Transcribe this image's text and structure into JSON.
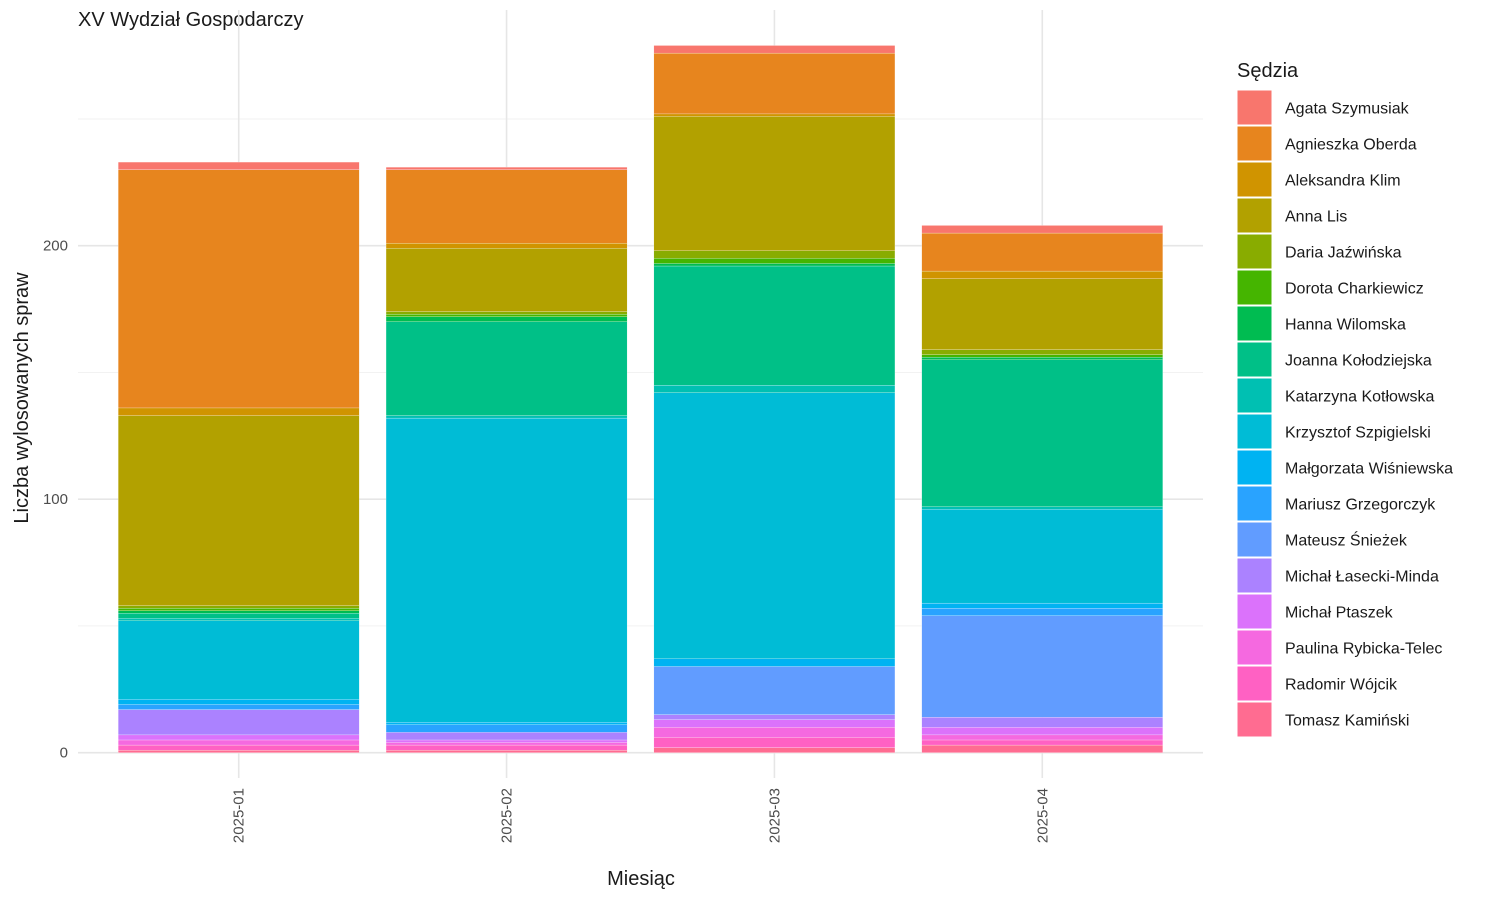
{
  "chart_data": {
    "type": "bar",
    "stacked": true,
    "title": "XV Wydział Gospodarczy",
    "xlabel": "Miesiąc",
    "ylabel": "Liczba wylosowanych spraw",
    "categories": [
      "2025-01",
      "2025-02",
      "2025-03",
      "2025-04"
    ],
    "ylim": [
      -10,
      293
    ],
    "yticks": [
      0,
      100,
      200
    ],
    "grid": true,
    "legend_title": "Sędzia",
    "legend_position": "right",
    "series": [
      {
        "name": "Agata Szymusiak",
        "color": "#F8766D",
        "values": [
          3,
          1,
          3,
          3
        ]
      },
      {
        "name": "Agnieszka Oberda",
        "color": "#E7851E",
        "values": [
          94,
          29,
          24,
          15
        ]
      },
      {
        "name": "Aleksandra Klim",
        "color": "#D09400",
        "values": [
          3,
          2,
          1,
          3
        ]
      },
      {
        "name": "Anna Lis",
        "color": "#B2A100",
        "values": [
          75,
          25,
          53,
          28
        ]
      },
      {
        "name": "Daria Jaźwińska",
        "color": "#89AC00",
        "values": [
          1,
          1,
          3,
          2
        ]
      },
      {
        "name": "Dorota Charkiewicz",
        "color": "#45B500",
        "values": [
          1,
          1,
          2,
          1
        ]
      },
      {
        "name": "Hanna Wilomska",
        "color": "#00BC51",
        "values": [
          1,
          2,
          1,
          1
        ]
      },
      {
        "name": "Joanna Kołodziejska",
        "color": "#00C087",
        "values": [
          2,
          37,
          47,
          58
        ]
      },
      {
        "name": "Katarzyna Kotłowska",
        "color": "#00C0B2",
        "values": [
          1,
          1,
          3,
          1
        ]
      },
      {
        "name": "Krzysztof Szpigielski",
        "color": "#00BCD6",
        "values": [
          31,
          120,
          105,
          37
        ]
      },
      {
        "name": "Małgorzata Wiśniewska",
        "color": "#00B3F2",
        "values": [
          2,
          1,
          3,
          2
        ]
      },
      {
        "name": "Mariusz Grzegorczyk",
        "color": "#29A3FF",
        "values": [
          2,
          3,
          0,
          3
        ]
      },
      {
        "name": "Mateusz Śnieżek",
        "color": "#619CFF",
        "values": [
          0,
          0,
          19,
          40
        ]
      },
      {
        "name": "Michał Łasecki-Minda",
        "color": "#AB82FF",
        "values": [
          10,
          3,
          2,
          4
        ]
      },
      {
        "name": "Michał Ptaszek",
        "color": "#DB72FB",
        "values": [
          2,
          1,
          3,
          3
        ]
      },
      {
        "name": "Paulina Rybicka-Telec",
        "color": "#F569E0",
        "values": [
          2,
          1,
          4,
          2
        ]
      },
      {
        "name": "Radomir Wójcik",
        "color": "#FF61C3",
        "values": [
          2,
          2,
          4,
          2
        ]
      },
      {
        "name": "Tomasz Kamiński",
        "color": "#FF6C91",
        "values": [
          1,
          1,
          2,
          3
        ]
      }
    ]
  }
}
